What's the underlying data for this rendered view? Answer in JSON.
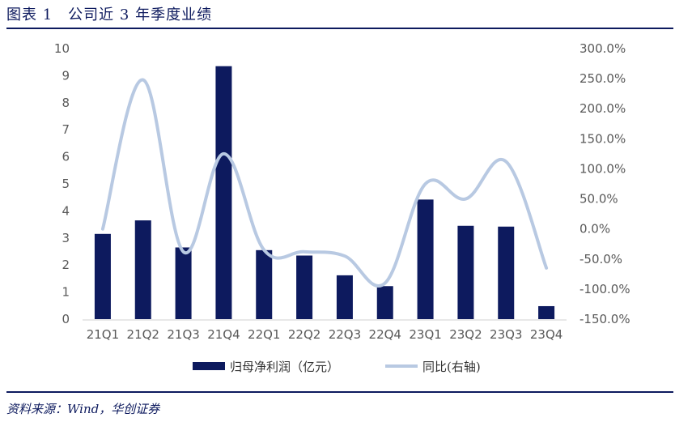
{
  "header": {
    "title": "图表 1　公司近 3 年季度业绩"
  },
  "footer": {
    "source": "资料来源：Wind，华创证券"
  },
  "colors": {
    "bar": "#0d1a5e",
    "line": "#b8c9e2",
    "rule": "#0d1a5e"
  },
  "chart_data": {
    "type": "bar",
    "categories": [
      "21Q1",
      "21Q2",
      "21Q3",
      "21Q4",
      "22Q1",
      "22Q2",
      "22Q3",
      "22Q4",
      "23Q1",
      "23Q2",
      "23Q3",
      "23Q4"
    ],
    "series": [
      {
        "name": "归母净利润（亿元）",
        "type": "bar",
        "axis": "left",
        "values": [
          3.15,
          3.65,
          2.65,
          9.35,
          2.55,
          2.35,
          1.62,
          1.22,
          4.42,
          3.45,
          3.42,
          0.48
        ]
      },
      {
        "name": "同比(右轴)",
        "type": "line",
        "smooth": true,
        "axis": "right",
        "values": [
          0,
          248,
          -38,
          125,
          -35,
          -38,
          -45,
          -90,
          75,
          50,
          112,
          -65
        ]
      }
    ],
    "yleft": {
      "min": 0,
      "max": 10,
      "ticks": [
        "0",
        "1",
        "2",
        "3",
        "4",
        "5",
        "6",
        "7",
        "8",
        "9",
        "10"
      ]
    },
    "yright": {
      "min": -150,
      "max": 300,
      "ticks": [
        "-150.0%",
        "-100.0%",
        "-50.0%",
        "0.0%",
        "50.0%",
        "100.0%",
        "150.0%",
        "200.0%",
        "250.0%",
        "300.0%"
      ]
    },
    "legend": {
      "placement": "bottom"
    }
  }
}
